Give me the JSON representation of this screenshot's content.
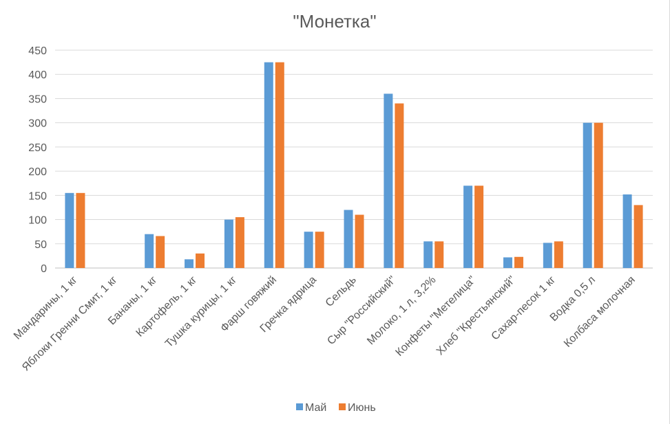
{
  "chart_data": {
    "type": "bar",
    "title": "\"Монетка\"",
    "xlabel": "",
    "ylabel": "",
    "ylim": [
      0,
      450
    ],
    "yticks": [
      0,
      50,
      100,
      150,
      200,
      250,
      300,
      350,
      400,
      450
    ],
    "grid": true,
    "legend_position": "bottom",
    "categories": [
      "Мандарины, 1 кг",
      "Яблоки Гренни Смит, 1 кг",
      "Бананы, 1 кг",
      "Картофель, 1 кг",
      "Тушка курицы, 1 кг",
      "Фарш говяжий",
      "Гречка ядрица",
      "Сельдь",
      "Сыр \"Российский\"",
      "Молоко, 1 л, 3,2%",
      "Конфеты \"Метелица\"",
      "Хлеб \"Крестьянский\"",
      "Сахар-песок 1 кг",
      "Водка 0,5 л",
      "Колбаса молочная"
    ],
    "series": [
      {
        "name": "Май",
        "color": "#5b9bd5",
        "values": [
          155,
          0,
          70,
          18,
          100,
          425,
          75,
          120,
          360,
          55,
          170,
          22,
          52,
          300,
          152
        ]
      },
      {
        "name": "Июнь",
        "color": "#ed7d31",
        "values": [
          155,
          0,
          66,
          30,
          105,
          425,
          75,
          110,
          340,
          55,
          170,
          23,
          55,
          300,
          130
        ]
      }
    ]
  }
}
